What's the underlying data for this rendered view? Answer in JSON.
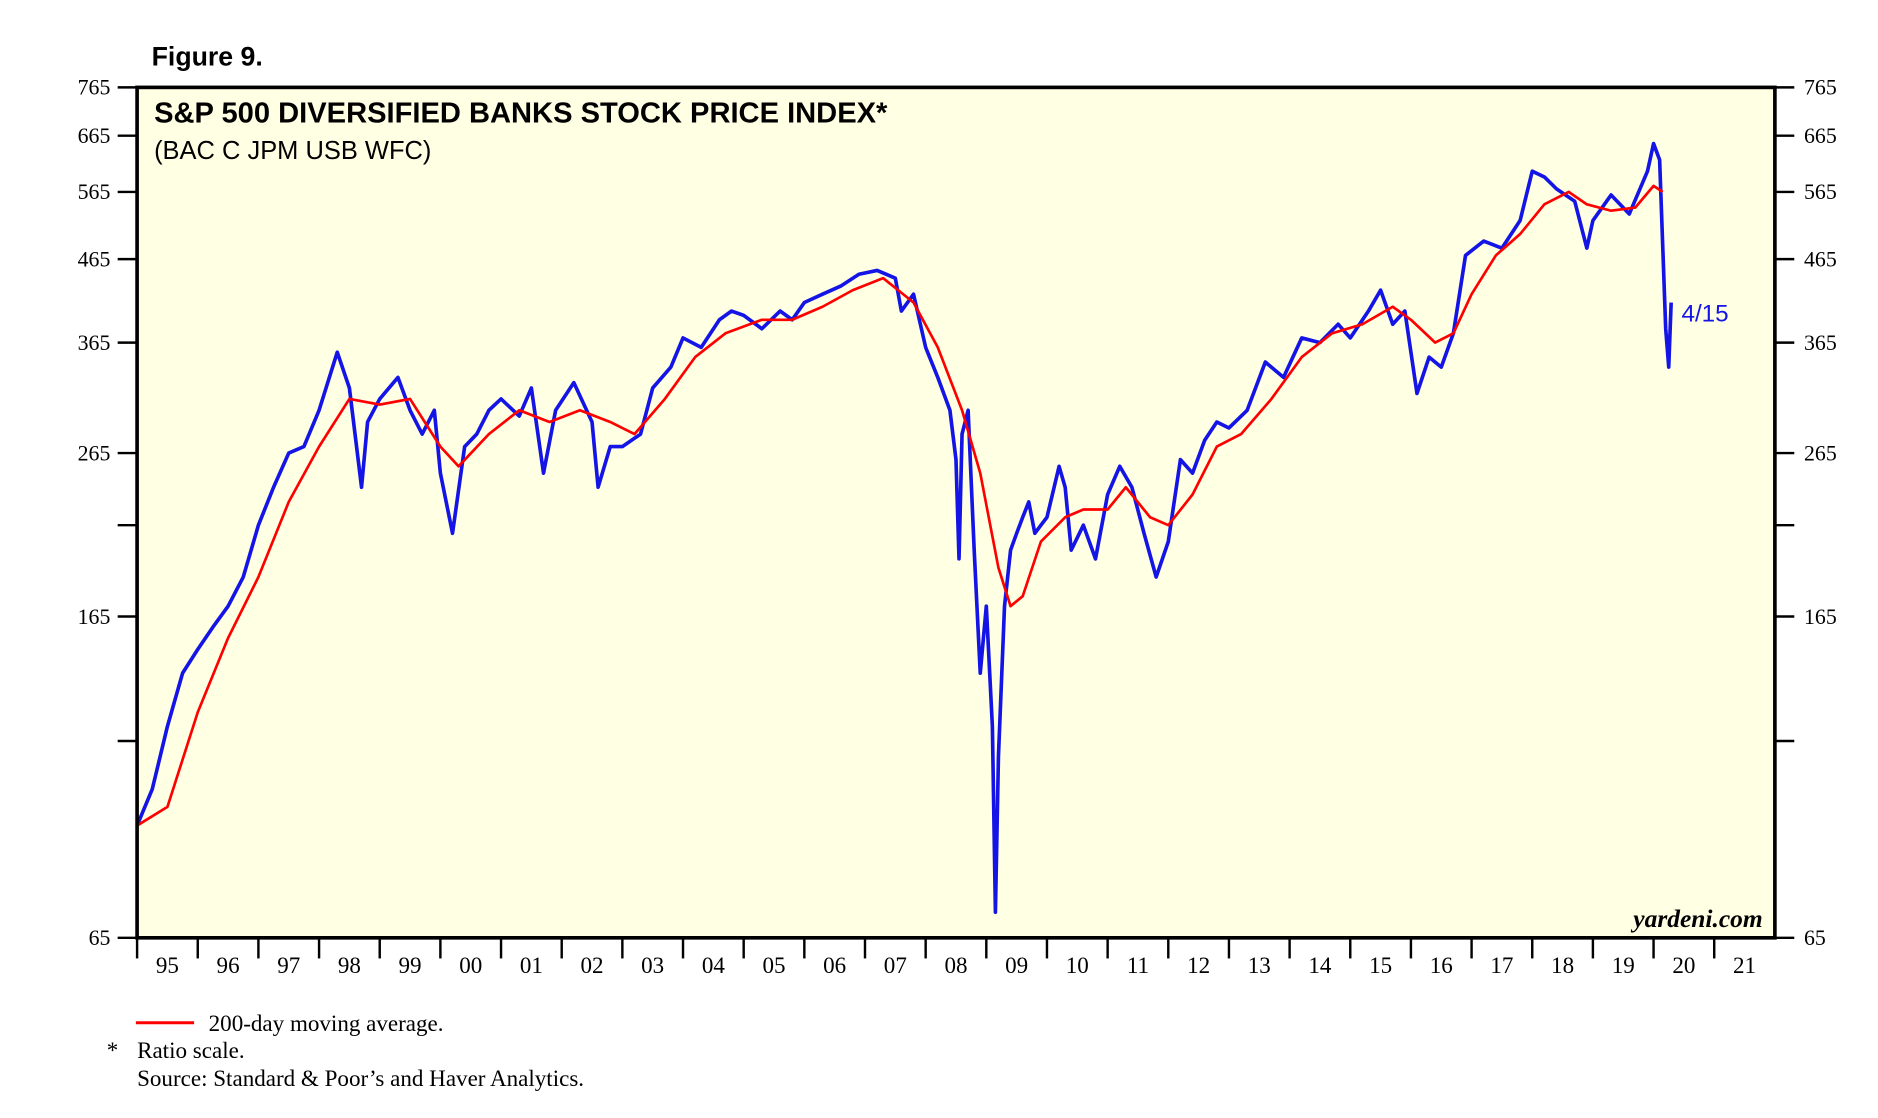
{
  "chart_data": {
    "type": "line",
    "figure_label": "Figure 9.",
    "title": "S&P 500 DIVERSIFIED BANKS STOCK PRICE INDEX*",
    "subtitle": "(BAC C JPM USB WFC)",
    "watermark": "yardeni.com",
    "end_label": "4/15",
    "log_scale": true,
    "ylim": [
      65,
      765
    ],
    "yticks": [
      65,
      165,
      265,
      365,
      465,
      565,
      665,
      765
    ],
    "minor_yticks": [
      115,
      215
    ],
    "xlim": [
      1995,
      2022
    ],
    "xticks": [
      {
        "value": 1995,
        "label": "95"
      },
      {
        "value": 1996,
        "label": "96"
      },
      {
        "value": 1997,
        "label": "97"
      },
      {
        "value": 1998,
        "label": "98"
      },
      {
        "value": 1999,
        "label": "99"
      },
      {
        "value": 2000,
        "label": "00"
      },
      {
        "value": 2001,
        "label": "01"
      },
      {
        "value": 2002,
        "label": "02"
      },
      {
        "value": 2003,
        "label": "03"
      },
      {
        "value": 2004,
        "label": "04"
      },
      {
        "value": 2005,
        "label": "05"
      },
      {
        "value": 2006,
        "label": "06"
      },
      {
        "value": 2007,
        "label": "07"
      },
      {
        "value": 2008,
        "label": "08"
      },
      {
        "value": 2009,
        "label": "09"
      },
      {
        "value": 2010,
        "label": "10"
      },
      {
        "value": 2011,
        "label": "11"
      },
      {
        "value": 2012,
        "label": "12"
      },
      {
        "value": 2013,
        "label": "13"
      },
      {
        "value": 2014,
        "label": "14"
      },
      {
        "value": 2015,
        "label": "15"
      },
      {
        "value": 2016,
        "label": "16"
      },
      {
        "value": 2017,
        "label": "17"
      },
      {
        "value": 2018,
        "label": "18"
      },
      {
        "value": 2019,
        "label": "19"
      },
      {
        "value": 2020,
        "label": "20"
      },
      {
        "value": 2021,
        "label": "21"
      }
    ],
    "series": [
      {
        "name": "S&P 500 Diversified Banks",
        "color": "#1414e6",
        "x": [
          1995.0,
          1995.25,
          1995.5,
          1995.75,
          1996.0,
          1996.25,
          1996.5,
          1996.75,
          1997.0,
          1997.25,
          1997.5,
          1997.75,
          1998.0,
          1998.3,
          1998.5,
          1998.7,
          1998.8,
          1999.0,
          1999.3,
          1999.5,
          1999.7,
          1999.9,
          2000.0,
          2000.2,
          2000.4,
          2000.6,
          2000.8,
          2001.0,
          2001.3,
          2001.5,
          2001.7,
          2001.9,
          2002.2,
          2002.5,
          2002.6,
          2002.8,
          2003.0,
          2003.3,
          2003.5,
          2003.8,
          2004.0,
          2004.3,
          2004.6,
          2004.8,
          2005.0,
          2005.3,
          2005.6,
          2005.8,
          2006.0,
          2006.3,
          2006.6,
          2006.9,
          2007.2,
          2007.5,
          2007.6,
          2007.8,
          2008.0,
          2008.2,
          2008.4,
          2008.5,
          2008.55,
          2008.6,
          2008.7,
          2008.8,
          2008.9,
          2009.0,
          2009.1,
          2009.15,
          2009.2,
          2009.3,
          2009.4,
          2009.5,
          2009.6,
          2009.7,
          2009.8,
          2009.9,
          2010.0,
          2010.2,
          2010.3,
          2010.4,
          2010.6,
          2010.8,
          2011.0,
          2011.2,
          2011.4,
          2011.6,
          2011.8,
          2012.0,
          2012.2,
          2012.4,
          2012.6,
          2012.8,
          2013.0,
          2013.3,
          2013.6,
          2013.9,
          2014.2,
          2014.5,
          2014.8,
          2015.0,
          2015.3,
          2015.5,
          2015.7,
          2015.9,
          2016.1,
          2016.3,
          2016.5,
          2016.7,
          2016.9,
          2017.2,
          2017.5,
          2017.8,
          2018.0,
          2018.2,
          2018.4,
          2018.7,
          2018.9,
          2019.0,
          2019.3,
          2019.6,
          2019.9,
          2020.0,
          2020.1,
          2020.2,
          2020.25,
          2020.29
        ],
        "values": [
          90,
          100,
          120,
          140,
          150,
          160,
          170,
          185,
          215,
          240,
          265,
          270,
          300,
          355,
          320,
          240,
          290,
          310,
          330,
          300,
          280,
          300,
          250,
          210,
          270,
          280,
          300,
          310,
          295,
          320,
          250,
          300,
          325,
          290,
          240,
          270,
          270,
          280,
          320,
          340,
          370,
          360,
          390,
          400,
          395,
          380,
          400,
          390,
          410,
          420,
          430,
          445,
          450,
          440,
          400,
          420,
          360,
          330,
          300,
          260,
          195,
          280,
          300,
          200,
          140,
          170,
          120,
          70,
          110,
          170,
          200,
          210,
          220,
          230,
          210,
          215,
          220,
          255,
          240,
          200,
          215,
          195,
          235,
          255,
          240,
          210,
          185,
          205,
          260,
          250,
          275,
          290,
          285,
          300,
          345,
          330,
          370,
          365,
          385,
          370,
          400,
          425,
          385,
          400,
          315,
          350,
          340,
          375,
          470,
          490,
          480,
          520,
          600,
          590,
          570,
          550,
          480,
          520,
          560,
          530,
          600,
          650,
          620,
          380,
          340,
          410
        ]
      },
      {
        "name": "200-day moving average.",
        "color": "#ff0000",
        "x": [
          1995.0,
          1995.5,
          1996.0,
          1996.5,
          1997.0,
          1997.5,
          1998.0,
          1998.5,
          1999.0,
          1999.5,
          2000.0,
          2000.3,
          2000.8,
          2001.3,
          2001.8,
          2002.3,
          2002.8,
          2003.2,
          2003.7,
          2004.2,
          2004.7,
          2005.3,
          2005.8,
          2006.3,
          2006.8,
          2007.3,
          2007.8,
          2008.2,
          2008.6,
          2008.9,
          2009.2,
          2009.4,
          2009.6,
          2009.9,
          2010.3,
          2010.6,
          2011.0,
          2011.3,
          2011.7,
          2012.0,
          2012.4,
          2012.8,
          2013.2,
          2013.7,
          2014.2,
          2014.7,
          2015.2,
          2015.7,
          2016.0,
          2016.4,
          2016.7,
          2017.0,
          2017.4,
          2017.8,
          2018.2,
          2018.6,
          2018.9,
          2019.3,
          2019.7,
          2020.0,
          2020.15
        ],
        "values": [
          90,
          95,
          125,
          155,
          185,
          230,
          270,
          310,
          305,
          310,
          270,
          255,
          280,
          300,
          290,
          300,
          290,
          280,
          310,
          350,
          375,
          390,
          390,
          405,
          425,
          440,
          410,
          360,
          300,
          250,
          190,
          170,
          175,
          205,
          220,
          225,
          225,
          240,
          220,
          215,
          235,
          270,
          280,
          310,
          350,
          375,
          385,
          405,
          390,
          365,
          375,
          420,
          470,
          500,
          545,
          565,
          545,
          535,
          540,
          575,
          565
        ]
      }
    ],
    "footnote_marker": "*",
    "footnote": "Ratio scale.",
    "source": "Source: Standard & Poor’s and Haver Analytics."
  }
}
